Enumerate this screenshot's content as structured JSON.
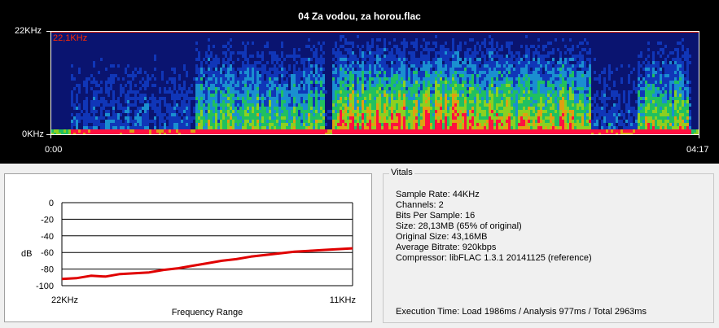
{
  "spectrogram": {
    "title": "04 Za vodou, za horou.flac",
    "y_max_label": "22KHz",
    "y_min_label": "0KHz",
    "cutoff_label": "22,1KHz",
    "x_start_label": "0:00",
    "x_end_label": "04:17"
  },
  "vitals": {
    "legend": "Vitals",
    "lines": [
      "Sample Rate: 44KHz",
      "Channels: 2",
      "Bits Per Sample: 16",
      "Size: 28,13MB (65% of original)",
      "Original Size: 43,16MB",
      "Average Bitrate: 920kbps",
      "Compressor: libFLAC 1.3.1 20141125 (reference)"
    ],
    "execution_time": "Execution Time: Load 1986ms / Analysis 977ms / Total 2963ms"
  },
  "chart_data": {
    "type": "line",
    "ylabel": "dB",
    "xlabel": "Frequency Range",
    "x_tick_labels": [
      "22KHz",
      "11KHz"
    ],
    "y_ticks": [
      0,
      -20,
      -40,
      -60,
      -80,
      -100
    ],
    "ylim": [
      -100,
      0
    ],
    "grid": true,
    "series": [
      {
        "color": "#e00000",
        "x": [
          0,
          0.05,
          0.1,
          0.15,
          0.2,
          0.25,
          0.3,
          0.35,
          0.4,
          0.45,
          0.5,
          0.55,
          0.6,
          0.65,
          0.7,
          0.75,
          0.8,
          0.85,
          0.9,
          0.95,
          1.0
        ],
        "y": [
          -92,
          -91,
          -88,
          -89,
          -86,
          -85,
          -84,
          -81,
          -79,
          -76,
          -73,
          -70,
          -68,
          -65,
          -63,
          -61,
          -59,
          -58,
          -57,
          -56,
          -55
        ]
      }
    ]
  }
}
